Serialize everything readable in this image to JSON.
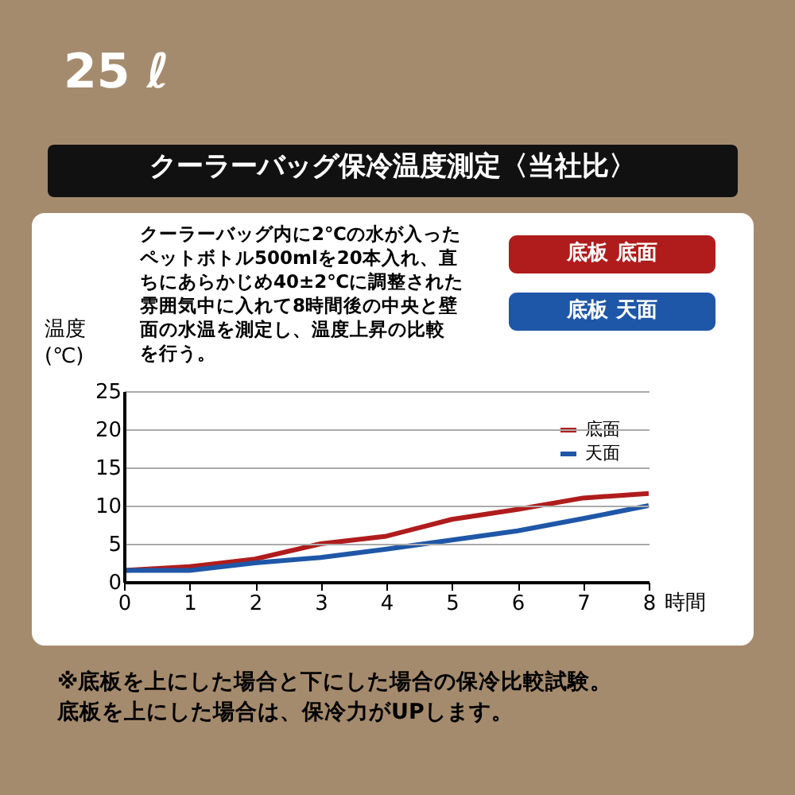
{
  "chart_data": {
    "type": "line",
    "title": "25 ℓ",
    "subtitle": "クーラーバッグ保冷温度測定〈当社比〉",
    "xlabel": "時間",
    "ylabel": "温度\n(℃)",
    "x": [
      0,
      1,
      2,
      3,
      4,
      5,
      6,
      7,
      8
    ],
    "series": [
      {
        "name": "底面",
        "color": "#b01c1c",
        "values": [
          1.5,
          2,
          3,
          5,
          6,
          8.2,
          9.5,
          11,
          11.6
        ]
      },
      {
        "name": "天面",
        "color": "#1f57a8",
        "values": [
          1.5,
          1.5,
          2.5,
          3.2,
          4.3,
          5.5,
          6.7,
          8.3,
          10
        ]
      }
    ],
    "xlim": [
      0,
      8
    ],
    "xticks": [
      0,
      1,
      2,
      3,
      4,
      5,
      6,
      7,
      8
    ],
    "ylim": [
      0,
      25
    ],
    "yticks": [
      0,
      5,
      10,
      15,
      20,
      25
    ],
    "grid": "y",
    "legend": "top right",
    "marker": "none",
    "line_style": "solid",
    "annotations": [
      "クーラーバッグ内に2℃の水が入ったペットボトル500mlを20本入れ、直ちにあらかじめ40±2℃に調整された雰囲気中に入れて8時間後の中央と壁面の水温を測定し、温度上昇の比較を行う。",
      "底板 底面",
      "底板 天面",
      "※底板を上にした場合と下にした場合の保冷比較試験。底板を上にした場合は、保冷力がUPします。"
    ]
  }
}
